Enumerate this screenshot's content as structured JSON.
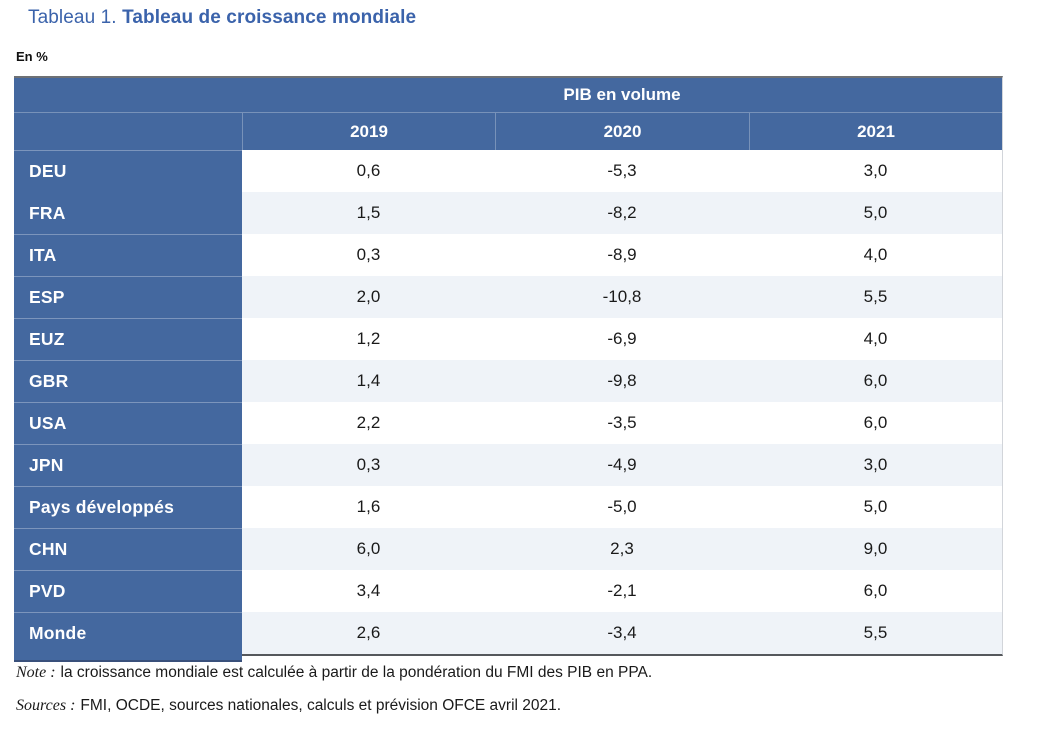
{
  "title": {
    "prefix": "Tableau 1.",
    "main": "Tableau de croissance mondiale"
  },
  "unit_label": "En %",
  "table": {
    "spanning_header": "PIB en volume",
    "years": [
      "2019",
      "2020",
      "2021"
    ],
    "rows": [
      {
        "label": "DEU",
        "values": [
          "0,6",
          "-5,3",
          "3,0"
        ]
      },
      {
        "label": "FRA",
        "values": [
          "1,5",
          "-8,2",
          "5,0"
        ]
      },
      {
        "label": "ITA",
        "values": [
          "0,3",
          "-8,9",
          "4,0"
        ]
      },
      {
        "label": "ESP",
        "values": [
          "2,0",
          "-10,8",
          "5,5"
        ]
      },
      {
        "label": "EUZ",
        "values": [
          "1,2",
          "-6,9",
          "4,0"
        ]
      },
      {
        "label": "GBR",
        "values": [
          "1,4",
          "-9,8",
          "6,0"
        ]
      },
      {
        "label": "USA",
        "values": [
          "2,2",
          "-3,5",
          "6,0"
        ]
      },
      {
        "label": "JPN",
        "values": [
          "0,3",
          "-4,9",
          "3,0"
        ]
      },
      {
        "label": "Pays développés",
        "values": [
          "1,6",
          "-5,0",
          "5,0"
        ]
      },
      {
        "label": "CHN",
        "values": [
          "6,0",
          "2,3",
          "9,0"
        ]
      },
      {
        "label": "PVD",
        "values": [
          "3,4",
          "-2,1",
          "6,0"
        ]
      },
      {
        "label": "Monde",
        "values": [
          "2,6",
          "-3,4",
          "5,5"
        ]
      }
    ]
  },
  "notes": {
    "note": {
      "label": "Note :",
      "text": "la croissance mondiale est calculée à partir de la pondération du FMI des PIB en PPA."
    },
    "sources": {
      "label": "Sources :",
      "text": "FMI, OCDE, sources nationales, calculs et prévision OFCE avril 2021."
    }
  },
  "colors": {
    "header_blue": "#44689f",
    "alt_row": "#eff3f8",
    "title_blue": "#3b63ab"
  }
}
